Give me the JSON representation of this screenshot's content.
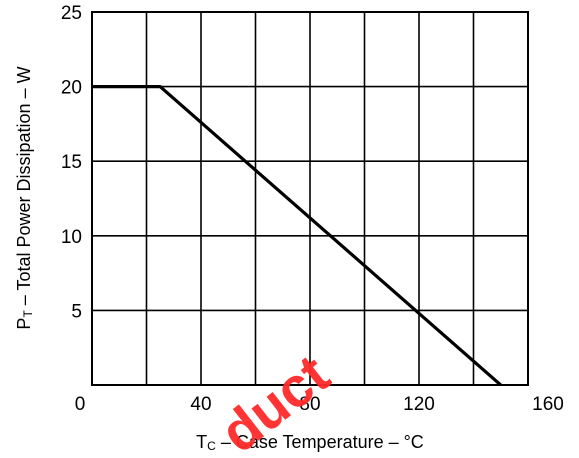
{
  "chart_data": {
    "type": "line",
    "title": "",
    "ylabel": {
      "main": "P",
      "sub": "T",
      "rest": " – Total Power Dissipation – W"
    },
    "xlabel": {
      "main": "T",
      "sub": "C",
      "rest": " – Case Temperature – °C"
    },
    "xlim": [
      0,
      160
    ],
    "ylim": [
      0,
      25
    ],
    "grid": true,
    "x_ticks": [
      "0",
      "40",
      "80",
      "120",
      "160"
    ],
    "y_ticks": [
      "5",
      "10",
      "15",
      "20",
      "25"
    ],
    "series": [
      {
        "x": [
          0,
          25,
          150
        ],
        "y": [
          20,
          20,
          0
        ],
        "color": "#000000"
      }
    ]
  },
  "watermark": {
    "text": "duct",
    "color": "#ff2b2b"
  }
}
